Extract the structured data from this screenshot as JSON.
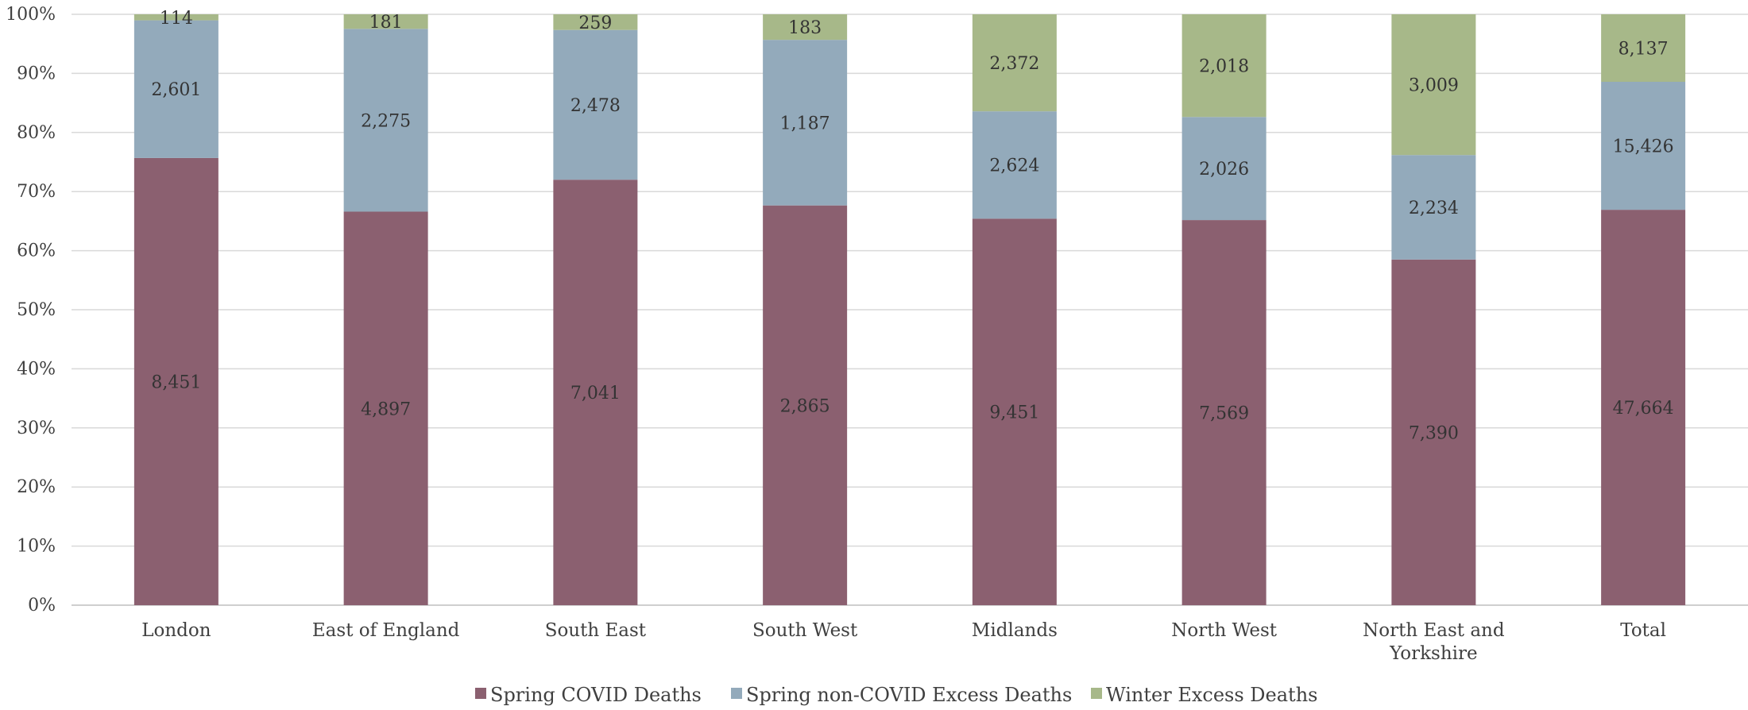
{
  "chart_data": {
    "type": "bar",
    "stacked": "percent",
    "categories": [
      "London",
      "East of England",
      "South East",
      "South West",
      "Midlands",
      "North West",
      "North East and Yorkshire",
      "Total"
    ],
    "series": [
      {
        "name": "Spring COVID Deaths",
        "color": "#8b6070",
        "values": [
          8451,
          4897,
          7041,
          2865,
          9451,
          7569,
          7390,
          47664
        ]
      },
      {
        "name": "Spring non-COVID Excess Deaths",
        "color": "#93aabb",
        "values": [
          2601,
          2275,
          2478,
          1187,
          2624,
          2026,
          2234,
          15426
        ]
      },
      {
        "name": "Winter Excess Deaths",
        "color": "#a7b889",
        "values": [
          114,
          181,
          259,
          183,
          2372,
          2018,
          3009,
          8137
        ]
      }
    ],
    "data_labels": [
      [
        "8,451",
        "4,897",
        "7,041",
        "2,865",
        "9,451",
        "7,569",
        "7,390",
        "47,664"
      ],
      [
        "2,601",
        "2,275",
        "2,478",
        "1,187",
        "2,624",
        "2,026",
        "2,234",
        "15,426"
      ],
      [
        "114",
        "181",
        "259",
        "183",
        "2,372",
        "2,018",
        "3,009",
        "8,137"
      ]
    ],
    "y_ticks": [
      "0%",
      "10%",
      "20%",
      "30%",
      "40%",
      "50%",
      "60%",
      "70%",
      "80%",
      "90%",
      "100%"
    ],
    "ylim": [
      0,
      100
    ],
    "grid": true,
    "legend_position": "bottom"
  }
}
